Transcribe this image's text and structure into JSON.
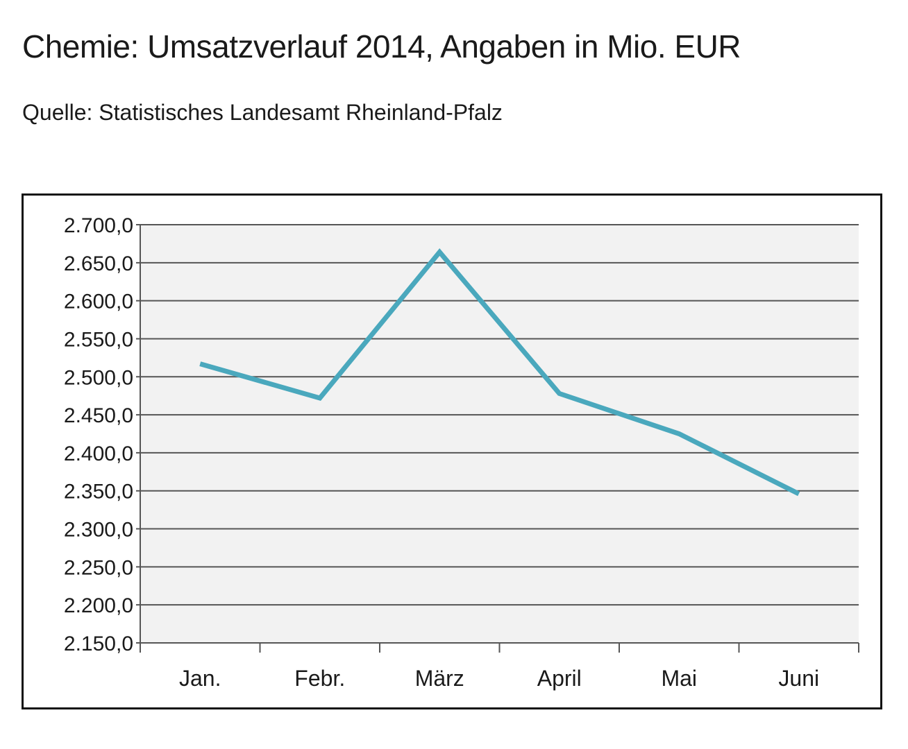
{
  "header": {
    "title": "Chemie: Umsatzverlauf 2014, Angaben in Mio. EUR",
    "subtitle": "Quelle: Statistisches Landesamt Rheinland-Pfalz"
  },
  "colors": {
    "line": "#4aa8bd",
    "plot_background": "#f2f2f2",
    "gridline": "#555555",
    "frame": "#111111"
  },
  "chart_data": {
    "type": "line",
    "title": "Chemie: Umsatzverlauf 2014, Angaben in Mio. EUR",
    "subtitle": "Quelle: Statistisches Landesamt Rheinland-Pfalz",
    "categories": [
      "Jan.",
      "Febr.",
      "März",
      "April",
      "Mai",
      "Juni"
    ],
    "series": [
      {
        "values": [
          2517,
          2472,
          2664,
          2478,
          2425,
          2346
        ]
      }
    ],
    "ylim": [
      2150,
      2700
    ],
    "ytick_step": 50,
    "ytick_labels": [
      "2.700,0",
      "2.650,0",
      "2.600,0",
      "2.550,0",
      "2.500,0",
      "2.450,0",
      "2.400,0",
      "2.350,0",
      "2.300,0",
      "2.250,0",
      "2.200,0",
      "2.150,0"
    ],
    "grid": true,
    "legend": "none"
  }
}
